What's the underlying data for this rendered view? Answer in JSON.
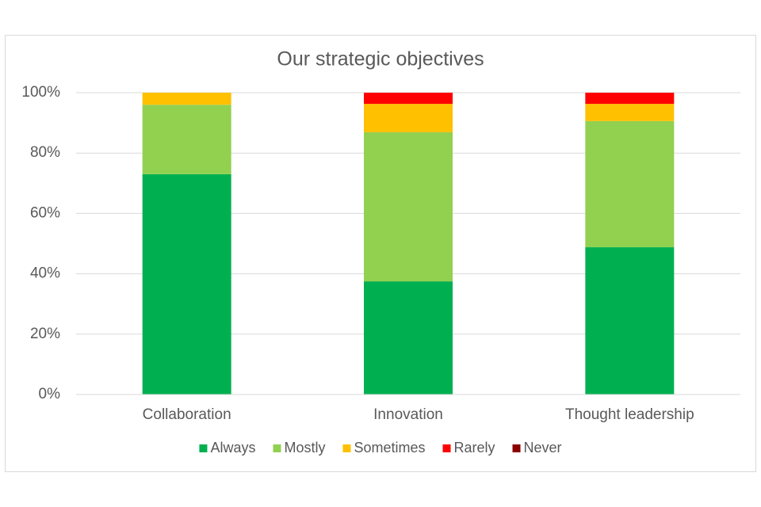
{
  "chart_data": {
    "type": "stacked_bar",
    "title": "Our strategic objectives",
    "categories": [
      "Collaboration",
      "Innovation",
      "Thought leadership"
    ],
    "series": [
      {
        "name": "Always",
        "color": "#00b050",
        "values": [
          73,
          37.5,
          48.8
        ]
      },
      {
        "name": "Mostly",
        "color": "#92d050",
        "values": [
          23,
          49.4,
          41.8
        ]
      },
      {
        "name": "Sometimes",
        "color": "#ffc000",
        "values": [
          4,
          9.4,
          5.7
        ]
      },
      {
        "name": "Rarely",
        "color": "#ff0000",
        "values": [
          0,
          3.7,
          3.7
        ]
      },
      {
        "name": "Never",
        "color": "#8b0000",
        "values": [
          0,
          0,
          0
        ]
      }
    ],
    "ylim": [
      0,
      100
    ],
    "yticks": [
      {
        "value": 0,
        "label": "0%"
      },
      {
        "value": 20,
        "label": "20%"
      },
      {
        "value": 40,
        "label": "40%"
      },
      {
        "value": 60,
        "label": "60%"
      },
      {
        "value": 80,
        "label": "80%"
      },
      {
        "value": 100,
        "label": "100%"
      }
    ],
    "grid": true,
    "legend": "bottom"
  }
}
